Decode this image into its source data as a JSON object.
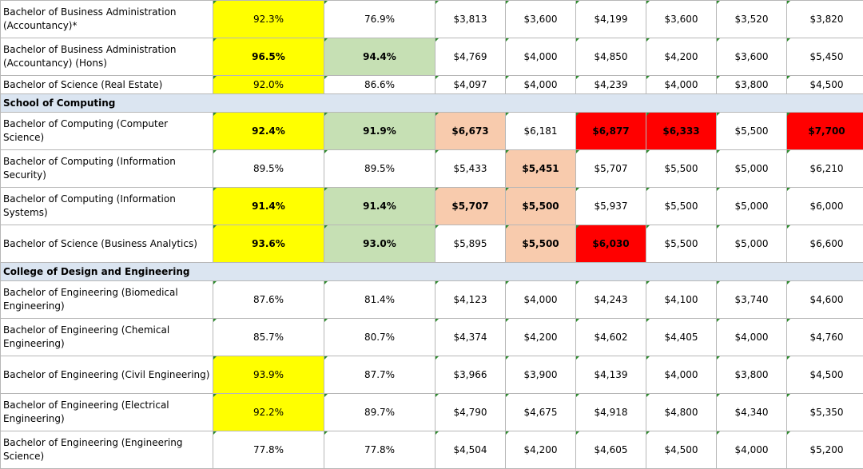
{
  "highlight_colors": {
    "yellow": "#ffff00",
    "green": "#c6e0b4",
    "peach": "#f8cbad",
    "red": "#ff0000",
    "school_header": "#dbe5f1"
  },
  "rows": [
    {
      "kind": "program",
      "name": "Bachelor of Business Administration (Accountancy)*",
      "tall": true,
      "cells": [
        {
          "v": "92.3%",
          "hl": "yellow",
          "b": false
        },
        {
          "v": "76.9%",
          "hl": "",
          "b": false
        },
        {
          "v": "$3,813",
          "hl": "",
          "b": false
        },
        {
          "v": "$3,600",
          "hl": "",
          "b": false
        },
        {
          "v": "$4,199",
          "hl": "",
          "b": false
        },
        {
          "v": "$3,600",
          "hl": "",
          "b": false
        },
        {
          "v": "$3,520",
          "hl": "",
          "b": false
        },
        {
          "v": "$3,820",
          "hl": "",
          "b": false
        }
      ]
    },
    {
      "kind": "program",
      "name": "Bachelor of Business Administration (Accountancy) (Hons)",
      "tall": true,
      "cells": [
        {
          "v": "96.5%",
          "hl": "yellow",
          "b": true
        },
        {
          "v": "94.4%",
          "hl": "green",
          "b": true
        },
        {
          "v": "$4,769",
          "hl": "",
          "b": false
        },
        {
          "v": "$4,000",
          "hl": "",
          "b": false
        },
        {
          "v": "$4,850",
          "hl": "",
          "b": false
        },
        {
          "v": "$4,200",
          "hl": "",
          "b": false
        },
        {
          "v": "$3,600",
          "hl": "",
          "b": false
        },
        {
          "v": "$5,450",
          "hl": "",
          "b": false
        }
      ]
    },
    {
      "kind": "program",
      "name": "Bachelor of Science (Real Estate)",
      "tall": false,
      "cells": [
        {
          "v": "92.0%",
          "hl": "yellow",
          "b": false
        },
        {
          "v": "86.6%",
          "hl": "",
          "b": false
        },
        {
          "v": "$4,097",
          "hl": "",
          "b": false
        },
        {
          "v": "$4,000",
          "hl": "",
          "b": false
        },
        {
          "v": "$4,239",
          "hl": "",
          "b": false
        },
        {
          "v": "$4,000",
          "hl": "",
          "b": false
        },
        {
          "v": "$3,800",
          "hl": "",
          "b": false
        },
        {
          "v": "$4,500",
          "hl": "",
          "b": false
        }
      ]
    },
    {
      "kind": "school",
      "name": "School of Computing"
    },
    {
      "kind": "program",
      "name": "Bachelor of Computing (Computer Science)",
      "tall": true,
      "cells": [
        {
          "v": "92.4%",
          "hl": "yellow",
          "b": true
        },
        {
          "v": "91.9%",
          "hl": "green",
          "b": true
        },
        {
          "v": "$6,673",
          "hl": "peach",
          "b": true
        },
        {
          "v": "$6,181",
          "hl": "",
          "b": false
        },
        {
          "v": "$6,877",
          "hl": "red",
          "b": true
        },
        {
          "v": "$6,333",
          "hl": "red",
          "b": true
        },
        {
          "v": "$5,500",
          "hl": "",
          "b": false
        },
        {
          "v": "$7,700",
          "hl": "red",
          "b": true
        }
      ]
    },
    {
      "kind": "program",
      "name": "Bachelor of Computing (Information Security)",
      "tall": true,
      "cells": [
        {
          "v": "89.5%",
          "hl": "",
          "b": false
        },
        {
          "v": "89.5%",
          "hl": "",
          "b": false
        },
        {
          "v": "$5,433",
          "hl": "",
          "b": false
        },
        {
          "v": "$5,451",
          "hl": "peach",
          "b": true
        },
        {
          "v": "$5,707",
          "hl": "",
          "b": false
        },
        {
          "v": "$5,500",
          "hl": "",
          "b": false
        },
        {
          "v": "$5,000",
          "hl": "",
          "b": false
        },
        {
          "v": "$6,210",
          "hl": "",
          "b": false
        }
      ]
    },
    {
      "kind": "program",
      "name": "Bachelor of Computing (Information Systems)",
      "tall": true,
      "cells": [
        {
          "v": "91.4%",
          "hl": "yellow",
          "b": true
        },
        {
          "v": "91.4%",
          "hl": "green",
          "b": true
        },
        {
          "v": "$5,707",
          "hl": "peach",
          "b": true
        },
        {
          "v": "$5,500",
          "hl": "peach",
          "b": true
        },
        {
          "v": "$5,937",
          "hl": "",
          "b": false
        },
        {
          "v": "$5,500",
          "hl": "",
          "b": false
        },
        {
          "v": "$5,000",
          "hl": "",
          "b": false
        },
        {
          "v": "$6,000",
          "hl": "",
          "b": false
        }
      ]
    },
    {
      "kind": "program",
      "name": "Bachelor of Science (Business Analytics)",
      "tall": true,
      "cells": [
        {
          "v": "93.6%",
          "hl": "yellow",
          "b": true
        },
        {
          "v": "93.0%",
          "hl": "green",
          "b": true
        },
        {
          "v": "$5,895",
          "hl": "",
          "b": false
        },
        {
          "v": "$5,500",
          "hl": "peach",
          "b": true
        },
        {
          "v": "$6,030",
          "hl": "red",
          "b": true
        },
        {
          "v": "$5,500",
          "hl": "",
          "b": false
        },
        {
          "v": "$5,000",
          "hl": "",
          "b": false
        },
        {
          "v": "$6,600",
          "hl": "",
          "b": false
        }
      ]
    },
    {
      "kind": "school",
      "name": "College of Design and Engineering"
    },
    {
      "kind": "program",
      "name": "Bachelor of Engineering (Biomedical Engineering)",
      "tall": true,
      "cells": [
        {
          "v": "87.6%",
          "hl": "",
          "b": false
        },
        {
          "v": "81.4%",
          "hl": "",
          "b": false
        },
        {
          "v": "$4,123",
          "hl": "",
          "b": false
        },
        {
          "v": "$4,000",
          "hl": "",
          "b": false
        },
        {
          "v": "$4,243",
          "hl": "",
          "b": false
        },
        {
          "v": "$4,100",
          "hl": "",
          "b": false
        },
        {
          "v": "$3,740",
          "hl": "",
          "b": false
        },
        {
          "v": "$4,600",
          "hl": "",
          "b": false
        }
      ]
    },
    {
      "kind": "program",
      "name": "Bachelor of Engineering (Chemical Engineering)",
      "tall": true,
      "cells": [
        {
          "v": "85.7%",
          "hl": "",
          "b": false
        },
        {
          "v": "80.7%",
          "hl": "",
          "b": false
        },
        {
          "v": "$4,374",
          "hl": "",
          "b": false
        },
        {
          "v": "$4,200",
          "hl": "",
          "b": false
        },
        {
          "v": "$4,602",
          "hl": "",
          "b": false
        },
        {
          "v": "$4,405",
          "hl": "",
          "b": false
        },
        {
          "v": "$4,000",
          "hl": "",
          "b": false
        },
        {
          "v": "$4,760",
          "hl": "",
          "b": false
        }
      ]
    },
    {
      "kind": "program",
      "name": "Bachelor of Engineering (Civil Engineering)",
      "tall": true,
      "cells": [
        {
          "v": "93.9%",
          "hl": "yellow",
          "b": false
        },
        {
          "v": "87.7%",
          "hl": "",
          "b": false
        },
        {
          "v": "$3,966",
          "hl": "",
          "b": false
        },
        {
          "v": "$3,900",
          "hl": "",
          "b": false
        },
        {
          "v": "$4,139",
          "hl": "",
          "b": false
        },
        {
          "v": "$4,000",
          "hl": "",
          "b": false
        },
        {
          "v": "$3,800",
          "hl": "",
          "b": false
        },
        {
          "v": "$4,500",
          "hl": "",
          "b": false
        }
      ]
    },
    {
      "kind": "program",
      "name": "Bachelor of Engineering (Electrical Engineering)",
      "tall": true,
      "cells": [
        {
          "v": "92.2%",
          "hl": "yellow",
          "b": false
        },
        {
          "v": "89.7%",
          "hl": "",
          "b": false
        },
        {
          "v": "$4,790",
          "hl": "",
          "b": false
        },
        {
          "v": "$4,675",
          "hl": "",
          "b": false
        },
        {
          "v": "$4,918",
          "hl": "",
          "b": false
        },
        {
          "v": "$4,800",
          "hl": "",
          "b": false
        },
        {
          "v": "$4,340",
          "hl": "",
          "b": false
        },
        {
          "v": "$5,350",
          "hl": "",
          "b": false
        }
      ]
    },
    {
      "kind": "program",
      "name": "Bachelor of Engineering (Engineering Science)",
      "tall": true,
      "cells": [
        {
          "v": "77.8%",
          "hl": "",
          "b": false
        },
        {
          "v": "77.8%",
          "hl": "",
          "b": false
        },
        {
          "v": "$4,504",
          "hl": "",
          "b": false
        },
        {
          "v": "$4,200",
          "hl": "",
          "b": false
        },
        {
          "v": "$4,605",
          "hl": "",
          "b": false
        },
        {
          "v": "$4,500",
          "hl": "",
          "b": false
        },
        {
          "v": "$4,000",
          "hl": "",
          "b": false
        },
        {
          "v": "$5,200",
          "hl": "",
          "b": false
        }
      ]
    }
  ]
}
